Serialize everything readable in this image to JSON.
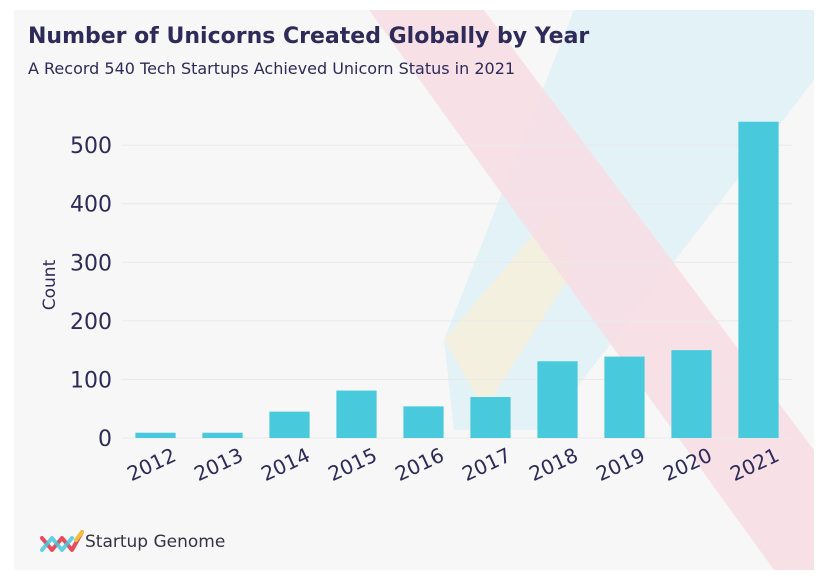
{
  "header": {
    "title": "Number of Unicorns Created Globally by Year",
    "subtitle": "A Record 540 Tech Startups Achieved Unicorn Status in 2021"
  },
  "brand": {
    "name": "Startup Genome"
  },
  "colors": {
    "bar": "#48c9dc",
    "text": "#2e2a5a",
    "grid": "#e9e9e9",
    "background": "#f7f7f7"
  },
  "chart_data": {
    "type": "bar",
    "categories": [
      "2012",
      "2013",
      "2014",
      "2015",
      "2016",
      "2017",
      "2018",
      "2019",
      "2020",
      "2021"
    ],
    "values": [
      9,
      9,
      45,
      81,
      54,
      70,
      131,
      139,
      150,
      540
    ],
    "ylabel": "Count",
    "ylim": [
      0,
      560
    ],
    "yticks": [
      0,
      100,
      200,
      300,
      400,
      500
    ],
    "grid": true,
    "legend": "none"
  }
}
